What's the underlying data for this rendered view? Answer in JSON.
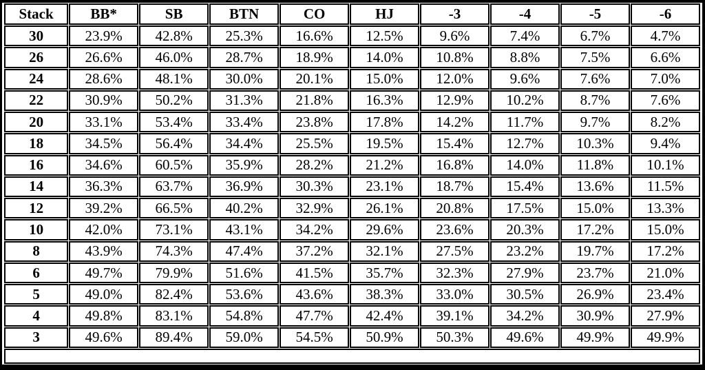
{
  "colors": {
    "border": "#000000",
    "background": "#ffffff",
    "text": "#000000"
  },
  "chart_data": {
    "type": "table",
    "title": "",
    "columns": [
      "Stack",
      "BB*",
      "SB",
      "BTN",
      "CO",
      "HJ",
      "-3",
      "-4",
      "-5",
      "-6"
    ],
    "rows": [
      {
        "stack": "30",
        "values": [
          "23.9%",
          "42.8%",
          "25.3%",
          "16.6%",
          "12.5%",
          "9.6%",
          "7.4%",
          "6.7%",
          "4.7%"
        ]
      },
      {
        "stack": "26",
        "values": [
          "26.6%",
          "46.0%",
          "28.7%",
          "18.9%",
          "14.0%",
          "10.8%",
          "8.8%",
          "7.5%",
          "6.6%"
        ]
      },
      {
        "stack": "24",
        "values": [
          "28.6%",
          "48.1%",
          "30.0%",
          "20.1%",
          "15.0%",
          "12.0%",
          "9.6%",
          "7.6%",
          "7.0%"
        ]
      },
      {
        "stack": "22",
        "values": [
          "30.9%",
          "50.2%",
          "31.3%",
          "21.8%",
          "16.3%",
          "12.9%",
          "10.2%",
          "8.7%",
          "7.6%"
        ]
      },
      {
        "stack": "20",
        "values": [
          "33.1%",
          "53.4%",
          "33.4%",
          "23.8%",
          "17.8%",
          "14.2%",
          "11.7%",
          "9.7%",
          "8.2%"
        ]
      },
      {
        "stack": "18",
        "values": [
          "34.5%",
          "56.4%",
          "34.4%",
          "25.5%",
          "19.5%",
          "15.4%",
          "12.7%",
          "10.3%",
          "9.4%"
        ]
      },
      {
        "stack": "16",
        "values": [
          "34.6%",
          "60.5%",
          "35.9%",
          "28.2%",
          "21.2%",
          "16.8%",
          "14.0%",
          "11.8%",
          "10.1%"
        ]
      },
      {
        "stack": "14",
        "values": [
          "36.3%",
          "63.7%",
          "36.9%",
          "30.3%",
          "23.1%",
          "18.7%",
          "15.4%",
          "13.6%",
          "11.5%"
        ]
      },
      {
        "stack": "12",
        "values": [
          "39.2%",
          "66.5%",
          "40.2%",
          "32.9%",
          "26.1%",
          "20.8%",
          "17.5%",
          "15.0%",
          "13.3%"
        ]
      },
      {
        "stack": "10",
        "values": [
          "42.0%",
          "73.1%",
          "43.1%",
          "34.2%",
          "29.6%",
          "23.6%",
          "20.3%",
          "17.2%",
          "15.0%"
        ]
      },
      {
        "stack": "8",
        "values": [
          "43.9%",
          "74.3%",
          "47.4%",
          "37.2%",
          "32.1%",
          "27.5%",
          "23.2%",
          "19.7%",
          "17.2%"
        ]
      },
      {
        "stack": "6",
        "values": [
          "49.7%",
          "79.9%",
          "51.6%",
          "41.5%",
          "35.7%",
          "32.3%",
          "27.9%",
          "23.7%",
          "21.0%"
        ]
      },
      {
        "stack": "5",
        "values": [
          "49.0%",
          "82.4%",
          "53.6%",
          "43.6%",
          "38.3%",
          "33.0%",
          "30.5%",
          "26.9%",
          "23.4%"
        ]
      },
      {
        "stack": "4",
        "values": [
          "49.8%",
          "83.1%",
          "54.8%",
          "47.7%",
          "42.4%",
          "39.1%",
          "34.2%",
          "30.9%",
          "27.9%"
        ]
      },
      {
        "stack": "3",
        "values": [
          "49.6%",
          "89.4%",
          "59.0%",
          "54.5%",
          "50.9%",
          "50.3%",
          "49.6%",
          "49.9%",
          "49.9%"
        ]
      }
    ]
  }
}
